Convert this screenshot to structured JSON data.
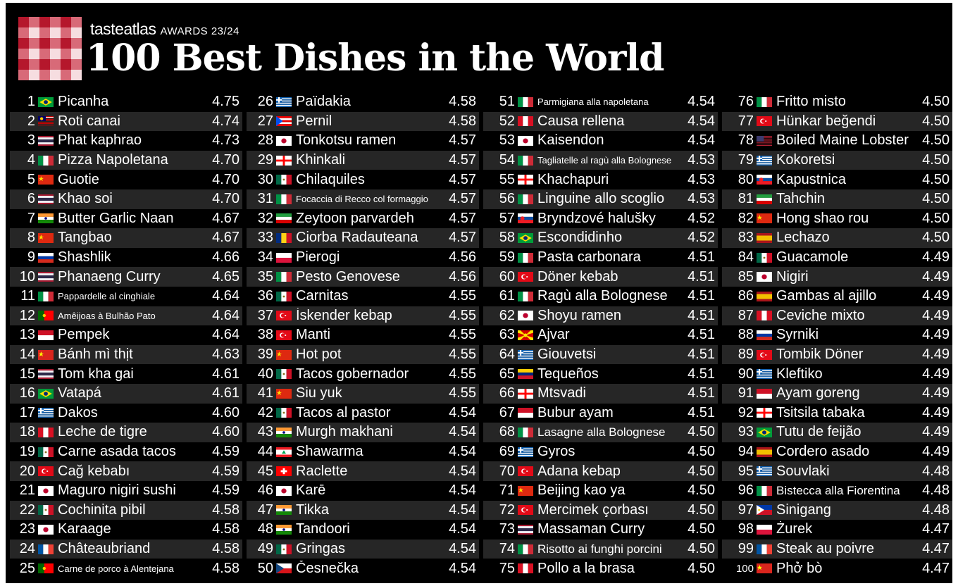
{
  "header": {
    "brand": "tasteatlas",
    "awards": "AWARDS 23/24",
    "title": "100 Best Dishes in the World"
  },
  "flag_colors": {
    "BR": [
      "#009b3a",
      "#fedf00"
    ],
    "MY": [
      "#cc0001",
      "#ffffff"
    ],
    "TH": [
      "#a51931",
      "#f4f5f8",
      "#2d2a4a"
    ],
    "IT": [
      "#009246",
      "#ffffff",
      "#ce2b37"
    ],
    "CN": [
      "#de2910",
      "#ffde00"
    ],
    "IN": [
      "#ff9933",
      "#ffffff",
      "#138808"
    ],
    "RU": [
      "#ffffff",
      "#0039a6",
      "#d52b1e"
    ],
    "PT": [
      "#006600",
      "#ff0000"
    ],
    "ID": [
      "#ce1126",
      "#ffffff"
    ],
    "VN": [
      "#da251d",
      "#ffff00"
    ],
    "GR": [
      "#0d5eaf",
      "#ffffff"
    ],
    "PE": [
      "#d91023",
      "#ffffff",
      "#d91023"
    ],
    "MX": [
      "#006847",
      "#ffffff",
      "#ce1126"
    ],
    "TR": [
      "#e30a17",
      "#ffffff"
    ],
    "JP": [
      "#ffffff",
      "#bc002d"
    ],
    "FR": [
      "#0055a4",
      "#ffffff",
      "#ef4135"
    ],
    "PR": [
      "#ed0000",
      "#ffffff",
      "#0050f0"
    ],
    "GE": [
      "#ffffff",
      "#ff0000"
    ],
    "IR": [
      "#239f40",
      "#ffffff",
      "#da0000"
    ],
    "RO": [
      "#002b7f",
      "#fcd116",
      "#ce1126"
    ],
    "PL": [
      "#ffffff",
      "#dc143c"
    ],
    "LB": [
      "#ed1c24",
      "#ffffff",
      "#00a651"
    ],
    "CH": [
      "#ff0000",
      "#ffffff"
    ],
    "CZ": [
      "#ffffff",
      "#d7141a",
      "#11457e"
    ],
    "SK": [
      "#ffffff",
      "#0b4ea2",
      "#ee1c25"
    ],
    "MK": [
      "#d20000",
      "#ffe600"
    ],
    "VE": [
      "#ffcc00",
      "#00247d",
      "#cf142b"
    ],
    "US": [
      "#b22234",
      "#ffffff",
      "#3c3b6e"
    ],
    "ES": [
      "#aa151b",
      "#f1bf00"
    ],
    "PH": [
      "#0038a8",
      "#ce1126",
      "#ffffff"
    ]
  },
  "columns": [
    {
      "entries": [
        {
          "rank": "1",
          "flag": "BR",
          "dish": "Picanha",
          "score": "4.75"
        },
        {
          "rank": "2",
          "flag": "MY",
          "dish": "Roti canai",
          "score": "4.74"
        },
        {
          "rank": "3",
          "flag": "TH",
          "dish": "Phat kaphrao",
          "score": "4.73"
        },
        {
          "rank": "4",
          "flag": "IT",
          "dish": "Pizza Napoletana",
          "score": "4.70"
        },
        {
          "rank": "5",
          "flag": "CN",
          "dish": "Guotie",
          "score": "4.70"
        },
        {
          "rank": "6",
          "flag": "TH",
          "dish": "Khao soi",
          "score": "4.70"
        },
        {
          "rank": "7",
          "flag": "IN",
          "dish": "Butter Garlic Naan",
          "score": "4.67"
        },
        {
          "rank": "8",
          "flag": "CN",
          "dish": "Tangbao",
          "score": "4.67"
        },
        {
          "rank": "9",
          "flag": "RU",
          "dish": "Shashlik",
          "score": "4.66"
        },
        {
          "rank": "10",
          "flag": "TH",
          "dish": "Phanaeng Curry",
          "score": "4.65"
        },
        {
          "rank": "11",
          "flag": "IT",
          "dish": "Pappardelle al cinghiale",
          "score": "4.64",
          "small": true
        },
        {
          "rank": "12",
          "flag": "PT",
          "dish": "Amêijoas à Bulhão Pato",
          "score": "4.64",
          "small": true
        },
        {
          "rank": "13",
          "flag": "ID",
          "dish": "Pempek",
          "score": "4.64"
        },
        {
          "rank": "14",
          "flag": "VN",
          "dish": "Bánh mì thịt",
          "score": "4.63"
        },
        {
          "rank": "15",
          "flag": "TH",
          "dish": "Tom kha gai",
          "score": "4.61"
        },
        {
          "rank": "16",
          "flag": "BR",
          "dish": "Vatapá",
          "score": "4.61"
        },
        {
          "rank": "17",
          "flag": "GR",
          "dish": "Dakos",
          "score": "4.60"
        },
        {
          "rank": "18",
          "flag": "PE",
          "dish": "Leche de tigre",
          "score": "4.60"
        },
        {
          "rank": "19",
          "flag": "MX",
          "dish": "Carne asada tacos",
          "score": "4.59"
        },
        {
          "rank": "20",
          "flag": "TR",
          "dish": "Cağ kebabı",
          "score": "4.59"
        },
        {
          "rank": "21",
          "flag": "JP",
          "dish": "Maguro nigiri sushi",
          "score": "4.59"
        },
        {
          "rank": "22",
          "flag": "MX",
          "dish": "Cochinita pibil",
          "score": "4.58"
        },
        {
          "rank": "23",
          "flag": "JP",
          "dish": "Karaage",
          "score": "4.58"
        },
        {
          "rank": "24",
          "flag": "FR",
          "dish": "Châteaubriand",
          "score": "4.58"
        },
        {
          "rank": "25",
          "flag": "PT",
          "dish": "Carne de porco à Alentejana",
          "score": "4.58",
          "small": true
        }
      ]
    },
    {
      "entries": [
        {
          "rank": "26",
          "flag": "GR",
          "dish": "Païdakia",
          "score": "4.58"
        },
        {
          "rank": "27",
          "flag": "PR",
          "dish": "Pernil",
          "score": "4.58"
        },
        {
          "rank": "28",
          "flag": "JP",
          "dish": "Tonkotsu ramen",
          "score": "4.57"
        },
        {
          "rank": "29",
          "flag": "GE",
          "dish": "Khinkali",
          "score": "4.57"
        },
        {
          "rank": "30",
          "flag": "MX",
          "dish": "Chilaquiles",
          "score": "4.57"
        },
        {
          "rank": "31",
          "flag": "IT",
          "dish": "Focaccia di Recco col formaggio",
          "score": "4.57",
          "small": true
        },
        {
          "rank": "32",
          "flag": "IR",
          "dish": "Zeytoon parvardeh",
          "score": "4.57"
        },
        {
          "rank": "33",
          "flag": "RO",
          "dish": "Ciorba Radauteana",
          "score": "4.57"
        },
        {
          "rank": "34",
          "flag": "PL",
          "dish": "Pierogi",
          "score": "4.56"
        },
        {
          "rank": "35",
          "flag": "IT",
          "dish": "Pesto Genovese",
          "score": "4.56"
        },
        {
          "rank": "36",
          "flag": "MX",
          "dish": "Carnitas",
          "score": "4.55"
        },
        {
          "rank": "37",
          "flag": "TR",
          "dish": "İskender kebap",
          "score": "4.55"
        },
        {
          "rank": "38",
          "flag": "TR",
          "dish": "Manti",
          "score": "4.55"
        },
        {
          "rank": "39",
          "flag": "CN",
          "dish": "Hot pot",
          "score": "4.55"
        },
        {
          "rank": "40",
          "flag": "MX",
          "dish": "Tacos gobernador",
          "score": "4.55"
        },
        {
          "rank": "41",
          "flag": "CN",
          "dish": "Siu yuk",
          "score": "4.55"
        },
        {
          "rank": "42",
          "flag": "MX",
          "dish": "Tacos al pastor",
          "score": "4.54"
        },
        {
          "rank": "43",
          "flag": "IN",
          "dish": "Murgh makhani",
          "score": "4.54"
        },
        {
          "rank": "44",
          "flag": "LB",
          "dish": "Shawarma",
          "score": "4.54"
        },
        {
          "rank": "45",
          "flag": "CH",
          "dish": "Raclette",
          "score": "4.54"
        },
        {
          "rank": "46",
          "flag": "JP",
          "dish": "Karē",
          "score": "4.54"
        },
        {
          "rank": "47",
          "flag": "IN",
          "dish": "Tikka",
          "score": "4.54"
        },
        {
          "rank": "48",
          "flag": "IN",
          "dish": "Tandoori",
          "score": "4.54"
        },
        {
          "rank": "49",
          "flag": "MX",
          "dish": "Gringas",
          "score": "4.54"
        },
        {
          "rank": "50",
          "flag": "CZ",
          "dish": "Česnečka",
          "score": "4.54"
        }
      ]
    },
    {
      "entries": [
        {
          "rank": "51",
          "flag": "IT",
          "dish": "Parmigiana alla napoletana",
          "score": "4.54",
          "small": true
        },
        {
          "rank": "52",
          "flag": "PE",
          "dish": "Causa rellena",
          "score": "4.54"
        },
        {
          "rank": "53",
          "flag": "JP",
          "dish": "Kaisendon",
          "score": "4.54"
        },
        {
          "rank": "54",
          "flag": "IT",
          "dish": "Tagliatelle al ragù alla Bolognese",
          "score": "4.53",
          "small": true
        },
        {
          "rank": "55",
          "flag": "GE",
          "dish": "Khachapuri",
          "score": "4.53"
        },
        {
          "rank": "56",
          "flag": "IT",
          "dish": "Linguine allo scoglio",
          "score": "4.53"
        },
        {
          "rank": "57",
          "flag": "SK",
          "dish": "Bryndzové halušky",
          "score": "4.52"
        },
        {
          "rank": "58",
          "flag": "BR",
          "dish": "Escondidinho",
          "score": "4.52"
        },
        {
          "rank": "59",
          "flag": "IT",
          "dish": "Pasta carbonara",
          "score": "4.51"
        },
        {
          "rank": "60",
          "flag": "TR",
          "dish": "Döner kebab",
          "score": "4.51"
        },
        {
          "rank": "61",
          "flag": "IT",
          "dish": "Ragù alla Bolognese",
          "score": "4.51"
        },
        {
          "rank": "62",
          "flag": "JP",
          "dish": "Shoyu ramen",
          "score": "4.51"
        },
        {
          "rank": "63",
          "flag": "MK",
          "dish": "Ajvar",
          "score": "4.51"
        },
        {
          "rank": "64",
          "flag": "GR",
          "dish": "Giouvetsi",
          "score": "4.51"
        },
        {
          "rank": "65",
          "flag": "VE",
          "dish": "Tequeños",
          "score": "4.51"
        },
        {
          "rank": "66",
          "flag": "GE",
          "dish": "Mtsvadi",
          "score": "4.51"
        },
        {
          "rank": "67",
          "flag": "ID",
          "dish": "Bubur ayam",
          "score": "4.51"
        },
        {
          "rank": "68",
          "flag": "IT",
          "dish": "Lasagne alla Bolognese",
          "score": "4.50",
          "medium": true
        },
        {
          "rank": "69",
          "flag": "GR",
          "dish": "Gyros",
          "score": "4.50"
        },
        {
          "rank": "70",
          "flag": "TR",
          "dish": "Adana kebap",
          "score": "4.50"
        },
        {
          "rank": "71",
          "flag": "CN",
          "dish": "Beijing kao ya",
          "score": "4.50"
        },
        {
          "rank": "72",
          "flag": "TR",
          "dish": "Mercimek çorbası",
          "score": "4.50"
        },
        {
          "rank": "73",
          "flag": "TH",
          "dish": "Massaman Curry",
          "score": "4.50"
        },
        {
          "rank": "74",
          "flag": "IT",
          "dish": "Risotto ai funghi porcini",
          "score": "4.50",
          "medium": true
        },
        {
          "rank": "75",
          "flag": "PE",
          "dish": "Pollo a la brasa",
          "score": "4.50"
        }
      ]
    },
    {
      "entries": [
        {
          "rank": "76",
          "flag": "IT",
          "dish": "Fritto misto",
          "score": "4.50"
        },
        {
          "rank": "77",
          "flag": "TR",
          "dish": "Hünkar beğendi",
          "score": "4.50"
        },
        {
          "rank": "78",
          "flag": "US",
          "dish": "Boiled Maine Lobster",
          "score": "4.50"
        },
        {
          "rank": "79",
          "flag": "GR",
          "dish": "Kokoretsi",
          "score": "4.50"
        },
        {
          "rank": "80",
          "flag": "SK",
          "dish": "Kapustnica",
          "score": "4.50"
        },
        {
          "rank": "81",
          "flag": "IR",
          "dish": "Tahchin",
          "score": "4.50"
        },
        {
          "rank": "82",
          "flag": "CN",
          "dish": "Hong shao rou",
          "score": "4.50"
        },
        {
          "rank": "83",
          "flag": "ES",
          "dish": "Lechazo",
          "score": "4.50"
        },
        {
          "rank": "84",
          "flag": "MX",
          "dish": "Guacamole",
          "score": "4.49"
        },
        {
          "rank": "85",
          "flag": "JP",
          "dish": "Nigiri",
          "score": "4.49"
        },
        {
          "rank": "86",
          "flag": "ES",
          "dish": "Gambas al ajillo",
          "score": "4.49"
        },
        {
          "rank": "87",
          "flag": "PE",
          "dish": "Ceviche mixto",
          "score": "4.49"
        },
        {
          "rank": "88",
          "flag": "RU",
          "dish": "Syrniki",
          "score": "4.49"
        },
        {
          "rank": "89",
          "flag": "TR",
          "dish": "Tombik Döner",
          "score": "4.49"
        },
        {
          "rank": "90",
          "flag": "GR",
          "dish": "Kleftiko",
          "score": "4.49"
        },
        {
          "rank": "91",
          "flag": "ID",
          "dish": "Ayam goreng",
          "score": "4.49"
        },
        {
          "rank": "92",
          "flag": "GE",
          "dish": "Tsitsila tabaka",
          "score": "4.49"
        },
        {
          "rank": "93",
          "flag": "BR",
          "dish": "Tutu de feijão",
          "score": "4.49"
        },
        {
          "rank": "94",
          "flag": "ES",
          "dish": "Cordero asado",
          "score": "4.49"
        },
        {
          "rank": "95",
          "flag": "GR",
          "dish": "Souvlaki",
          "score": "4.48"
        },
        {
          "rank": "96",
          "flag": "IT",
          "dish": "Bistecca alla Fiorentina",
          "score": "4.48",
          "medium": true
        },
        {
          "rank": "97",
          "flag": "PH",
          "dish": "Sinigang",
          "score": "4.48"
        },
        {
          "rank": "98",
          "flag": "PL",
          "dish": "Żurek",
          "score": "4.47"
        },
        {
          "rank": "99",
          "flag": "FR",
          "dish": "Steak au poivre",
          "score": "4.47"
        },
        {
          "rank": "100",
          "flag": "VN",
          "dish": "Phở bò",
          "score": "4.47"
        }
      ]
    }
  ]
}
